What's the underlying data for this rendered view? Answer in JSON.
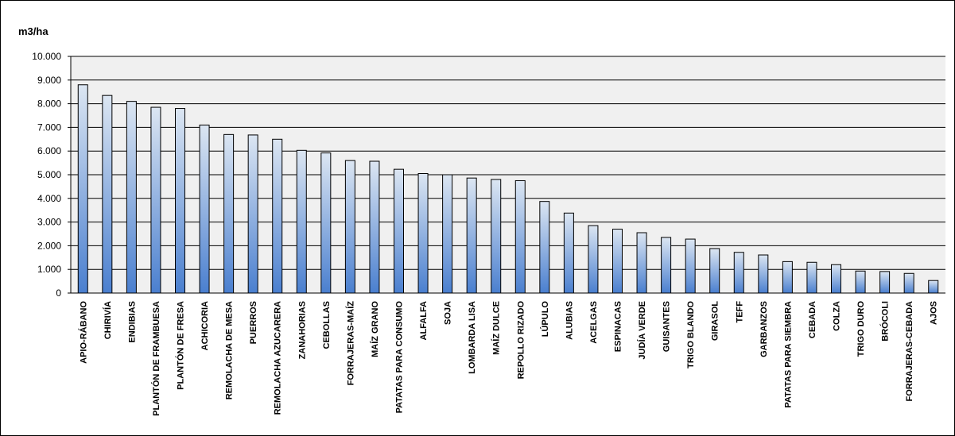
{
  "chart_data": {
    "type": "bar",
    "title": "",
    "xlabel": "",
    "ylabel": "m3/ha",
    "ylim": [
      0,
      10000
    ],
    "ytick_values": [
      0,
      1000,
      2000,
      3000,
      4000,
      5000,
      6000,
      7000,
      8000,
      9000,
      10000
    ],
    "ytick_labels": [
      "0",
      "1.000",
      "2.000",
      "3.000",
      "4.000",
      "5.000",
      "6.000",
      "7.000",
      "8.000",
      "9.000",
      "10.000"
    ],
    "grid": true,
    "legend": "none",
    "categories": [
      "APIO-RÁBANO",
      "CHIRIVÍA",
      "ENDIBIAS",
      "PLANTÓN DE FRAMBUESA",
      "PLANTÓN DE FRESA",
      "ACHICORIA",
      "REMOLACHA DE MESA",
      "PUERROS",
      "REMOLACHA AZUCARERA",
      "ZANAHORIAS",
      "CEBOLLAS",
      "FORRAJERAS-MAÍZ",
      "MAÍZ GRANO",
      "PATATAS PARA CONSUMO",
      "ALFALFA",
      "SOJA",
      "LOMBARDA LISA",
      "MAÍZ DULCE",
      "REPOLLO RIZADO",
      "LÚPULO",
      "ALUBIAS",
      "ACELGAS",
      "ESPINACAS",
      "JUDÍA VERDE",
      "GUISANTES",
      "TRIGO BLANDO",
      "GIRASOL",
      "TEFF",
      "GARBANZOS",
      "PATATAS PARA SIEMBRA",
      "CEBADA",
      "COLZA",
      "TRIGO DURO",
      "BRÓCOLI",
      "FORRAJERAS-CEBADA",
      "AJOS"
    ],
    "values": [
      8800,
      8350,
      8100,
      7850,
      7800,
      7100,
      6700,
      6680,
      6500,
      6030,
      5920,
      5600,
      5570,
      5230,
      5050,
      5000,
      4860,
      4800,
      4750,
      3870,
      3380,
      2850,
      2700,
      2550,
      2350,
      2280,
      1880,
      1720,
      1610,
      1330,
      1300,
      1200,
      930,
      910,
      830,
      530
    ],
    "colors": {
      "bar_top": "#dce6f2",
      "bar_bottom": "#4a7fcf",
      "plot_background": "#f0f0f0",
      "gridline": "#000000"
    }
  }
}
